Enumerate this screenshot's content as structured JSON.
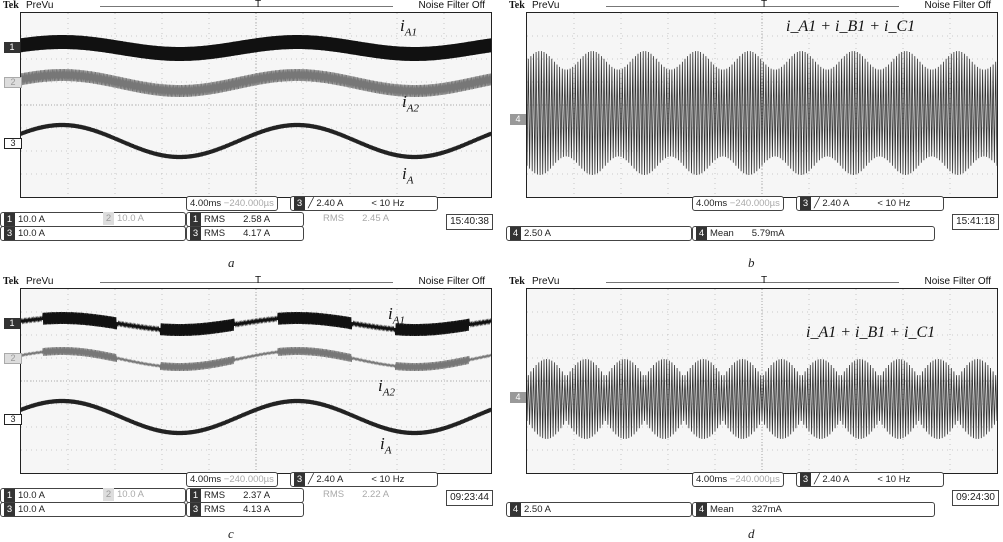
{
  "panels": [
    {
      "id": "a",
      "brand": "Tek",
      "mode": "PreVu",
      "filter": "Noise Filter Off",
      "trigger_marker": "T",
      "channels": [
        {
          "num": "1",
          "scale": "10.0 A",
          "faded": false
        },
        {
          "num": "2",
          "scale": "10.0 A",
          "faded": true
        },
        {
          "num": "3",
          "scale": "10.0 A",
          "faded": false
        }
      ],
      "timebase": "4.00ms",
      "position": "−240.000µs",
      "trigger": {
        "ch": "3",
        "level": "╱ 2.40 A",
        "freq": "< 10 Hz"
      },
      "measurements": [
        {
          "ch": "1",
          "label": "RMS",
          "value": "2.58 A",
          "faded": false
        },
        {
          "ch": "",
          "label": "RMS",
          "value": "2.45 A",
          "faded": true
        },
        {
          "ch": "3",
          "label": "RMS",
          "value": "4.17 A",
          "faded": false
        }
      ],
      "clock": "15:40:38",
      "labels": [
        {
          "base": "i",
          "sub": "A1"
        },
        {
          "base": "i",
          "sub": "A2"
        },
        {
          "base": "i",
          "sub": "A"
        }
      ],
      "caption": "a"
    },
    {
      "id": "b",
      "brand": "Tek",
      "mode": "PreVu",
      "filter": "Noise Filter Off",
      "trigger_marker": "T",
      "channels": [
        {
          "num": "4",
          "scale": "2.50 A",
          "faded": false
        }
      ],
      "timebase": "4.00ms",
      "position": "−240.000µs",
      "trigger": {
        "ch": "3",
        "level": "╱ 2.40 A",
        "freq": "< 10 Hz"
      },
      "measurements": [
        {
          "ch": "4",
          "label": "Mean",
          "value": "5.79mA",
          "faded": false
        }
      ],
      "clock": "15:41:18",
      "sum_label": "i_A1 + i_B1 + i_C1",
      "caption": "b"
    },
    {
      "id": "c",
      "brand": "Tek",
      "mode": "PreVu",
      "filter": "Noise Filter Off",
      "trigger_marker": "T",
      "channels": [
        {
          "num": "1",
          "scale": "10.0 A",
          "faded": false
        },
        {
          "num": "2",
          "scale": "10.0 A",
          "faded": true
        },
        {
          "num": "3",
          "scale": "10.0 A",
          "faded": false
        }
      ],
      "timebase": "4.00ms",
      "position": "−240.000µs",
      "trigger": {
        "ch": "3",
        "level": "╱ 2.40 A",
        "freq": "< 10 Hz"
      },
      "measurements": [
        {
          "ch": "1",
          "label": "RMS",
          "value": "2.37 A",
          "faded": false
        },
        {
          "ch": "",
          "label": "RMS",
          "value": "2.22 A",
          "faded": true
        },
        {
          "ch": "3",
          "label": "RMS",
          "value": "4.13 A",
          "faded": false
        }
      ],
      "clock": "09:23:44",
      "labels": [
        {
          "base": "i",
          "sub": "A1"
        },
        {
          "base": "i",
          "sub": "A2"
        },
        {
          "base": "i",
          "sub": "A"
        }
      ],
      "caption": "c"
    },
    {
      "id": "d",
      "brand": "Tek",
      "mode": "PreVu",
      "filter": "Noise Filter Off",
      "trigger_marker": "T",
      "channels": [
        {
          "num": "4",
          "scale": "2.50 A",
          "faded": false
        }
      ],
      "timebase": "4.00ms",
      "position": "−240.000µs",
      "trigger": {
        "ch": "3",
        "level": "╱ 2.40 A",
        "freq": "< 10 Hz"
      },
      "measurements": [
        {
          "ch": "4",
          "label": "Mean",
          "value": "327mA",
          "faded": false
        }
      ],
      "clock": "09:24:30",
      "sum_label": "i_A1 + i_B1 + i_C1",
      "caption": "d"
    }
  ],
  "chart_data": [
    {
      "type": "line",
      "panel": "a",
      "title": "",
      "series": [
        {
          "name": "i_A1",
          "channel": "1",
          "rms": "2.58 A"
        },
        {
          "name": "i_A2",
          "channel": "2",
          "rms": "2.45 A"
        },
        {
          "name": "i_A",
          "channel": "3",
          "rms": "4.17 A"
        }
      ],
      "x_divisions": 10,
      "y_divisions": 8,
      "grid": true
    },
    {
      "type": "line",
      "panel": "b",
      "series": [
        {
          "name": "i_A1 + i_B1 + i_C1",
          "channel": "4",
          "mean": "5.79mA"
        }
      ],
      "x_divisions": 10,
      "y_divisions": 8,
      "grid": true
    },
    {
      "type": "line",
      "panel": "c",
      "series": [
        {
          "name": "i_A1",
          "channel": "1",
          "rms": "2.37 A"
        },
        {
          "name": "i_A2",
          "channel": "2",
          "rms": "2.22 A"
        },
        {
          "name": "i_A",
          "channel": "3",
          "rms": "4.13 A"
        }
      ],
      "x_divisions": 10,
      "y_divisions": 8,
      "grid": true
    },
    {
      "type": "line",
      "panel": "d",
      "series": [
        {
          "name": "i_A1 + i_B1 + i_C1",
          "channel": "4",
          "mean": "327mA"
        }
      ],
      "x_divisions": 10,
      "y_divisions": 8,
      "grid": true
    }
  ]
}
